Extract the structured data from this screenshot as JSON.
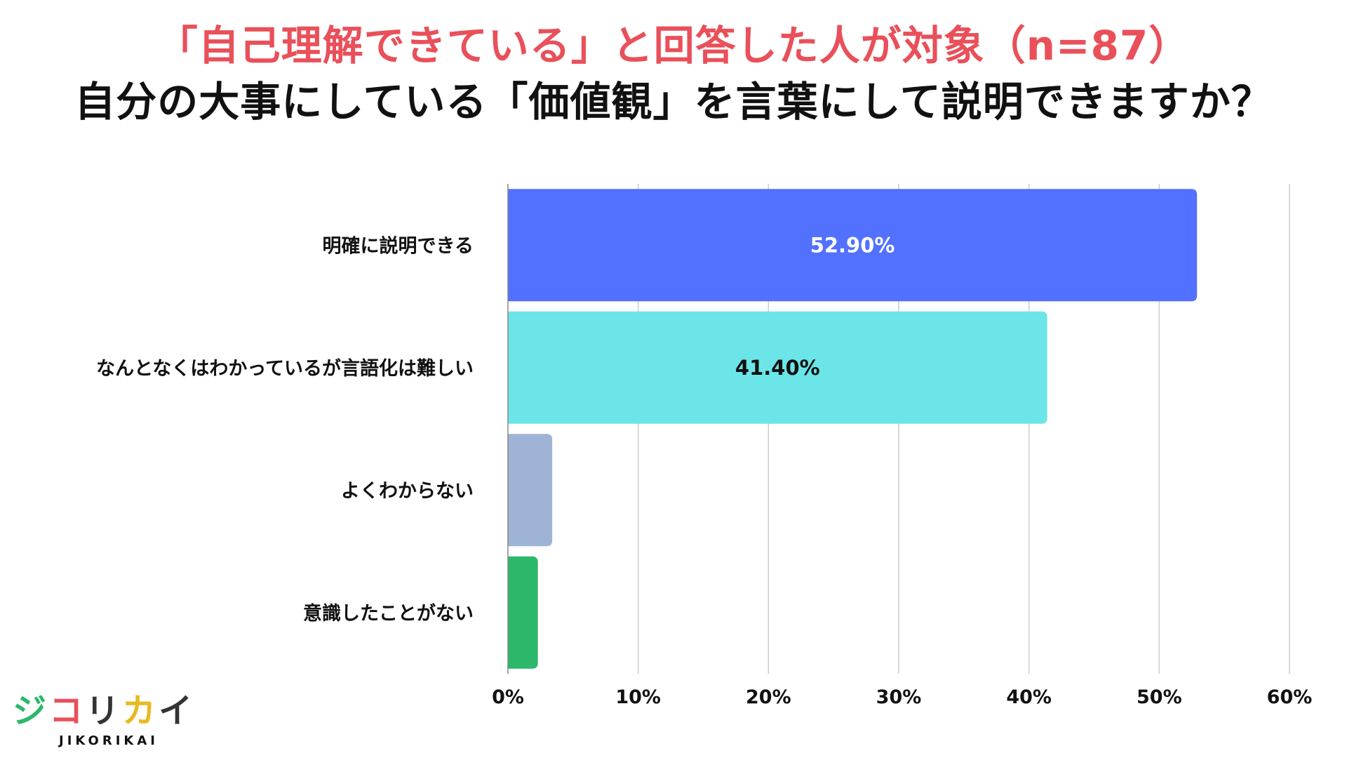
{
  "title": {
    "line1": "「自己理解できている」と回答した人が対象（n=87）",
    "line2": "自分の大事にしている「価値観」を言葉にして説明できますか？"
  },
  "colors": {
    "title_accent": "#e9505a",
    "grid": "#cccccc",
    "axis": "#888888"
  },
  "chart_data": {
    "type": "bar",
    "orientation": "horizontal",
    "categories": [
      "明確に説明できる",
      "なんとなくはわかっているが言語化は難しい",
      "よくわからない",
      "意識したことがない"
    ],
    "values": [
      52.9,
      41.4,
      3.4,
      2.3
    ],
    "value_labels": [
      "52.90%",
      "41.40%",
      "",
      ""
    ],
    "bar_colors": [
      "#5271ff",
      "#6ce5e8",
      "#9fb3d6",
      "#2bb86b"
    ],
    "value_label_colors": [
      "#ffffff",
      "#111111",
      "#111111",
      "#111111"
    ],
    "xlim": [
      0,
      60
    ],
    "xticks": [
      0,
      10,
      20,
      30,
      40,
      50,
      60
    ],
    "xtick_labels": [
      "0%",
      "10%",
      "20%",
      "30%",
      "40%",
      "50%",
      "60%"
    ],
    "grid": "vertical",
    "legend": "none"
  },
  "logo": {
    "chars": [
      "ジ",
      "コ",
      "リ",
      "カ",
      "イ"
    ],
    "char_colors": [
      "#2bb86b",
      "#e9505a",
      "#333333",
      "#e8b923",
      "#333333"
    ],
    "subtitle": "JIKORIKAI"
  }
}
